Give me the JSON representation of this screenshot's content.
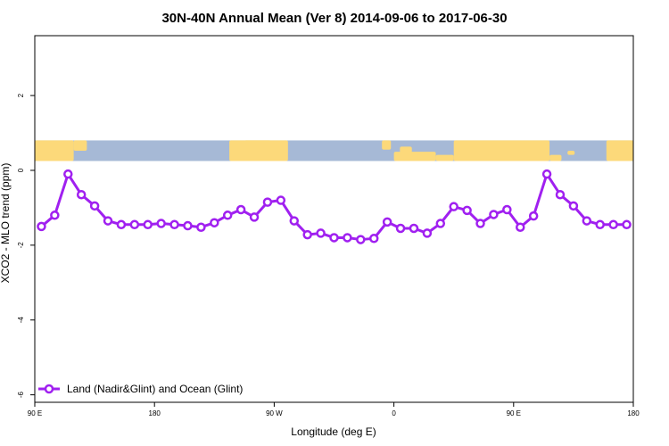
{
  "chart_data": {
    "type": "line",
    "title": "30N-40N Annual Mean (Ver 8)   2014-09-06 to 2017-06-30",
    "xlabel": "Longitude (deg E)",
    "ylabel": "XCO2 - MLO trend (ppm)",
    "xlim": [
      -90,
      180
    ],
    "ylim": [
      -6.2,
      3.6
    ],
    "x_ticks": [
      {
        "value": -90,
        "label": "90 E"
      },
      {
        "value": -36,
        "label": "180"
      },
      {
        "value": 18,
        "label": "90 W"
      },
      {
        "value": 72,
        "label": "0"
      },
      {
        "value": 126,
        "label": "90 E"
      },
      {
        "value": 180,
        "label": "180"
      }
    ],
    "y_ticks": [
      {
        "value": 2,
        "label": "2"
      },
      {
        "value": 0,
        "label": "0"
      },
      {
        "value": -2,
        "label": "-2"
      },
      {
        "value": -4,
        "label": "-4"
      },
      {
        "value": -6,
        "label": "-6"
      }
    ],
    "map_strip": {
      "y_range": [
        0.25,
        0.8
      ],
      "ocean_color": "#a6b9d6",
      "land_color": "#fcd97a"
    },
    "series": [
      {
        "name": "Land (Nadir&Glint) and Ocean (Glint)",
        "color": "#a020f0",
        "x": [
          -87,
          -81,
          -75,
          -69,
          -63,
          -57,
          -51,
          -45,
          -39,
          -33,
          -27,
          -21,
          -15,
          -9,
          -3,
          3,
          9,
          15,
          21,
          27,
          33,
          39,
          45,
          51,
          57,
          63,
          69,
          75,
          81,
          87,
          93,
          99,
          105,
          111,
          117,
          123,
          129,
          135,
          141,
          147,
          153,
          159,
          165,
          171,
          177
        ],
        "y": [
          -1.5,
          -1.2,
          -0.1,
          -0.65,
          -0.95,
          -1.35,
          -1.45,
          -1.45,
          -1.45,
          -1.42,
          -1.45,
          -1.48,
          -1.52,
          -1.4,
          -1.2,
          -1.05,
          -1.25,
          -0.85,
          -0.8,
          -1.35,
          -1.72,
          -1.68,
          -1.8,
          -1.8,
          -1.85,
          -1.82,
          -1.38,
          -1.55,
          -1.55,
          -1.68,
          -1.42,
          -0.97,
          -1.07,
          -1.42,
          -1.18,
          -1.05,
          -1.52,
          -1.22,
          -0.1,
          -0.65,
          -0.95,
          -1.35,
          -1.45,
          -1.45,
          -1.45
        ]
      }
    ],
    "legend_position": "bottom-left"
  }
}
